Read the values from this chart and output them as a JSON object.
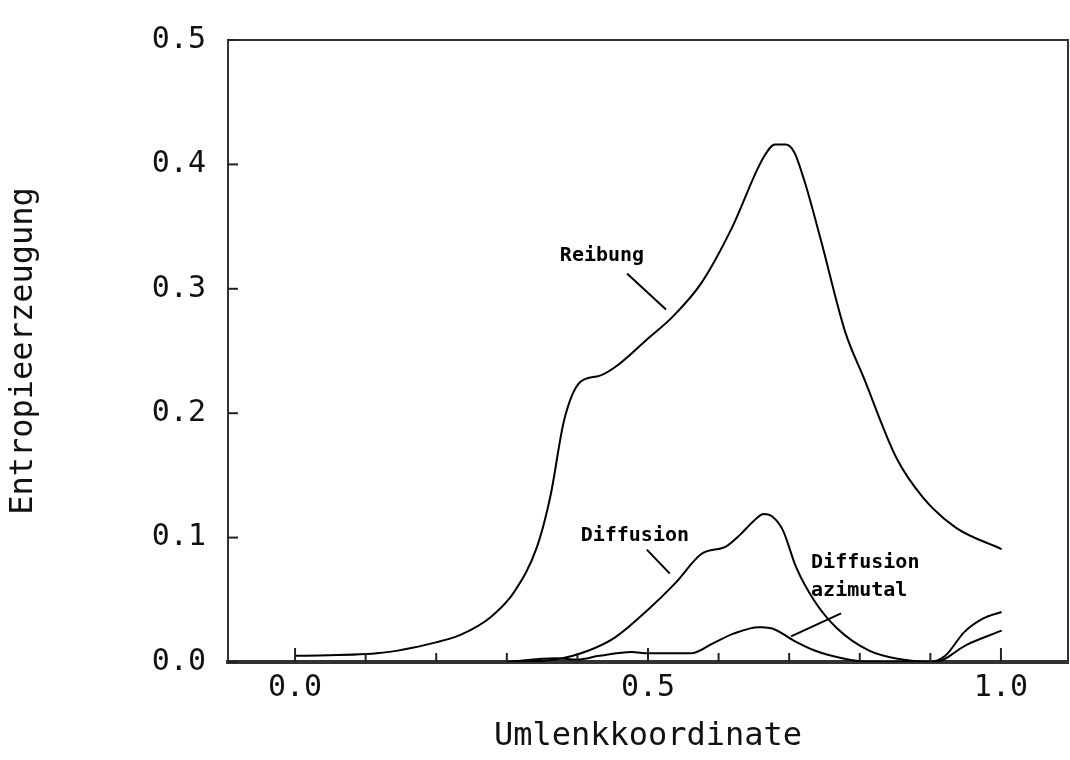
{
  "chart_data": {
    "type": "line",
    "xlabel": "Umlenkkoordinate",
    "ylabel": "Entropieerzeugung",
    "xlim": [
      -0.095,
      1.095
    ],
    "ylim": [
      0,
      0.5
    ],
    "xticks": [
      {
        "value": 0,
        "label": "0.0"
      },
      {
        "value": 0.1,
        "label": null
      },
      {
        "value": 0.2,
        "label": null
      },
      {
        "value": 0.3,
        "label": null
      },
      {
        "value": 0.4,
        "label": null
      },
      {
        "value": 0.5,
        "label": "0.5"
      },
      {
        "value": 0.6,
        "label": null
      },
      {
        "value": 0.7,
        "label": null
      },
      {
        "value": 0.8,
        "label": null
      },
      {
        "value": 0.9,
        "label": null
      },
      {
        "value": 1,
        "label": "1.0"
      }
    ],
    "yticks": [
      {
        "value": 0,
        "label": "0.0"
      },
      {
        "value": 0.1,
        "label": "0.1"
      },
      {
        "value": 0.2,
        "label": "0.2"
      },
      {
        "value": 0.3,
        "label": "0.3"
      },
      {
        "value": 0.4,
        "label": "0.4"
      },
      {
        "value": 0.5,
        "label": "0.5"
      }
    ],
    "grid": false,
    "legend": false,
    "marker": "none",
    "line_style": "solid",
    "series": [
      {
        "name": "Reibung",
        "color": "#000000",
        "x": [
          0,
          0.116,
          0.201,
          0.235,
          0.277,
          0.31,
          0.343,
          0.362,
          0.381,
          0.404,
          0.431,
          0.458,
          0.5,
          0.534,
          0.576,
          0.618,
          0.664,
          0.68,
          0.695,
          0.707,
          0.722,
          0.745,
          0.779,
          0.806,
          0.852,
          0.89,
          0.936,
          1
        ],
        "values": [
          0.005,
          0.007,
          0.016,
          0.022,
          0.036,
          0.056,
          0.093,
          0.134,
          0.194,
          0.225,
          0.23,
          0.239,
          0.26,
          0.277,
          0.305,
          0.348,
          0.406,
          0.416,
          0.416,
          0.41,
          0.386,
          0.339,
          0.266,
          0.228,
          0.164,
          0.132,
          0.108,
          0.091
        ]
      },
      {
        "name": "Diffusion",
        "color": "#000000",
        "x": [
          0.3,
          0.369,
          0.415,
          0.454,
          0.5,
          0.538,
          0.576,
          0.611,
          0.63,
          0.649,
          0.664,
          0.676,
          0.691,
          0.71,
          0.737,
          0.768,
          0.814,
          0.86,
          0.898,
          0.921,
          0.948,
          0.975,
          1
        ],
        "values": [
          0,
          0.002,
          0.009,
          0.02,
          0.042,
          0.063,
          0.087,
          0.093,
          0.102,
          0.113,
          0.119,
          0.117,
          0.106,
          0.076,
          0.048,
          0.027,
          0.009,
          0.002,
          0,
          0.005,
          0.024,
          0.035,
          0.04
        ]
      },
      {
        "name": "Diffusion azimutal",
        "color": "#000000",
        "x": [
          0.3,
          0.369,
          0.4,
          0.431,
          0.477,
          0.5,
          0.561,
          0.592,
          0.622,
          0.657,
          0.676,
          0.707,
          0.737,
          0.775,
          0.814,
          0.906,
          0.952,
          1
        ],
        "values": [
          0,
          0.003,
          0.002,
          0.005,
          0.008,
          0.007,
          0.007,
          0.015,
          0.023,
          0.028,
          0.027,
          0.017,
          0.009,
          0.003,
          0,
          0,
          0.014,
          0.025
        ]
      }
    ]
  }
}
